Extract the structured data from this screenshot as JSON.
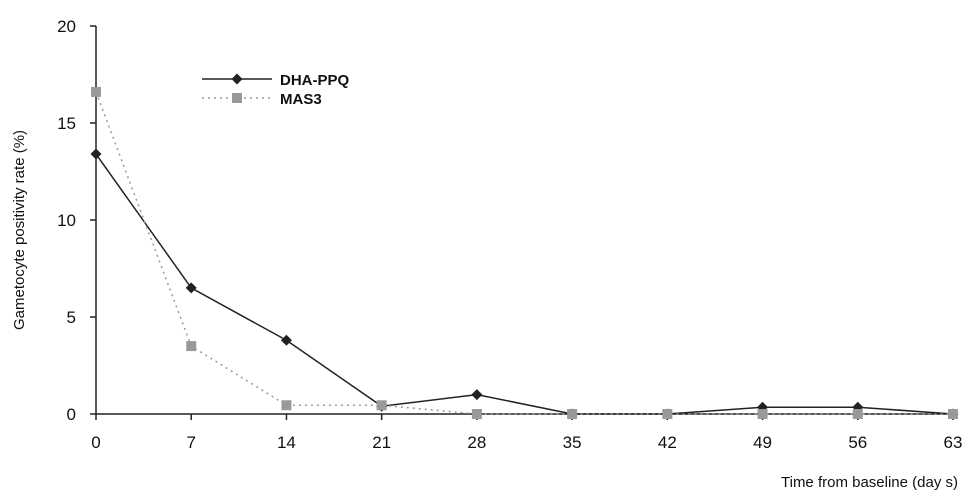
{
  "chart_data": {
    "type": "line",
    "title": "",
    "xlabel": "Time from baseline (day s)",
    "ylabel": "Gametocyte positivity rate (%)",
    "x": [
      0,
      7,
      14,
      21,
      28,
      35,
      42,
      49,
      56,
      63
    ],
    "x_tick_labels": [
      "0",
      "7",
      "14",
      "21",
      "28",
      "35",
      "42",
      "49",
      "56",
      "63"
    ],
    "xlim": [
      0,
      63
    ],
    "ylim": [
      0,
      20
    ],
    "y_ticks": [
      0,
      5,
      10,
      15,
      20
    ],
    "y_tick_labels": [
      "0",
      "5",
      "10",
      "15",
      "20"
    ],
    "grid": false,
    "legend_position": "top-left",
    "series": [
      {
        "name": "DHA-PPQ",
        "values": [
          13.4,
          6.5,
          3.8,
          0.4,
          1.0,
          0.0,
          0.0,
          0.35,
          0.35,
          0.0
        ],
        "color": "#222222",
        "line_style": "solid",
        "marker": "diamond"
      },
      {
        "name": "MAS3",
        "values": [
          16.6,
          3.5,
          0.45,
          0.45,
          0.0,
          0.0,
          0.0,
          0.0,
          0.0,
          0.0
        ],
        "color": "#999999",
        "line_style": "dotted",
        "marker": "square"
      }
    ]
  }
}
